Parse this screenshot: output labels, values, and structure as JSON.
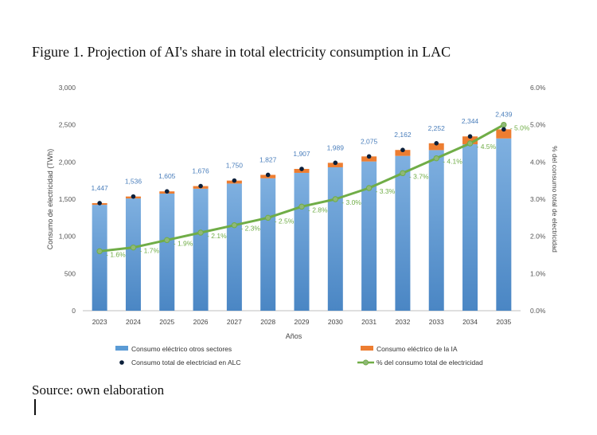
{
  "figure": {
    "title": "Figure 1. Projection of AI's share in total electricity consumption in LAC",
    "source": "Source: own elaboration"
  },
  "chart_data": {
    "type": "bar",
    "title": "",
    "xlabel": "Años",
    "ylabel": "Consumo de electricidad (TWh)",
    "y2label": "% del consumo total de electricidad",
    "categories": [
      "2023",
      "2024",
      "2025",
      "2026",
      "2027",
      "2028",
      "2029",
      "2030",
      "2031",
      "2032",
      "2033",
      "2034",
      "2035"
    ],
    "ylim": [
      0,
      3000
    ],
    "yticks": [
      "0",
      "500",
      "1,000",
      "1,500",
      "2,000",
      "2,500",
      "3,000"
    ],
    "y2lim": [
      0,
      6
    ],
    "y2ticks": [
      "0.0%",
      "1.0%",
      "2.0%",
      "3.0%",
      "4.0%",
      "5.0%",
      "6.0%"
    ],
    "series": [
      {
        "name": "Consumo eléctrico otros sectores",
        "kind": "stacked-bar",
        "color": "#5b9bd5",
        "values": [
          1424,
          1510,
          1575,
          1641,
          1710,
          1781,
          1854,
          1929,
          2007,
          2082,
          2160,
          2239,
          2317
        ]
      },
      {
        "name": "Consumo eléctrico de la IA",
        "kind": "stacked-bar",
        "color": "#ed7d31",
        "values": [
          23,
          26,
          30,
          35,
          40,
          46,
          53,
          60,
          68,
          80,
          92,
          105,
          122
        ]
      },
      {
        "name": "Consumo total de electriciad en ALC",
        "kind": "marker",
        "color": "#0b1f3a",
        "values": [
          1447,
          1536,
          1605,
          1676,
          1750,
          1827,
          1907,
          1989,
          2075,
          2162,
          2252,
          2344,
          2439
        ],
        "labels": [
          "1,447",
          "1,536",
          "1,605",
          "1,676",
          "1,750",
          "1,827",
          "1,907",
          "1,989",
          "2,075",
          "2,162",
          "2,252",
          "2,344",
          "2,439"
        ]
      },
      {
        "name": "% del consumo total de electricidad",
        "kind": "line-secondary",
        "color": "#70ad47",
        "values": [
          1.6,
          1.7,
          1.9,
          2.1,
          2.3,
          2.5,
          2.8,
          3.0,
          3.3,
          3.7,
          4.1,
          4.5,
          5.0
        ],
        "labels": [
          "1.6%",
          "1.7%",
          "1.9%",
          "2.1%",
          "2.3%",
          "2.5%",
          "2.8%",
          "3.0%",
          "3.3%",
          "3.7%",
          "4.1%",
          "4.5%",
          "5.0%"
        ]
      }
    ],
    "grid": false,
    "legend": "bottom"
  }
}
